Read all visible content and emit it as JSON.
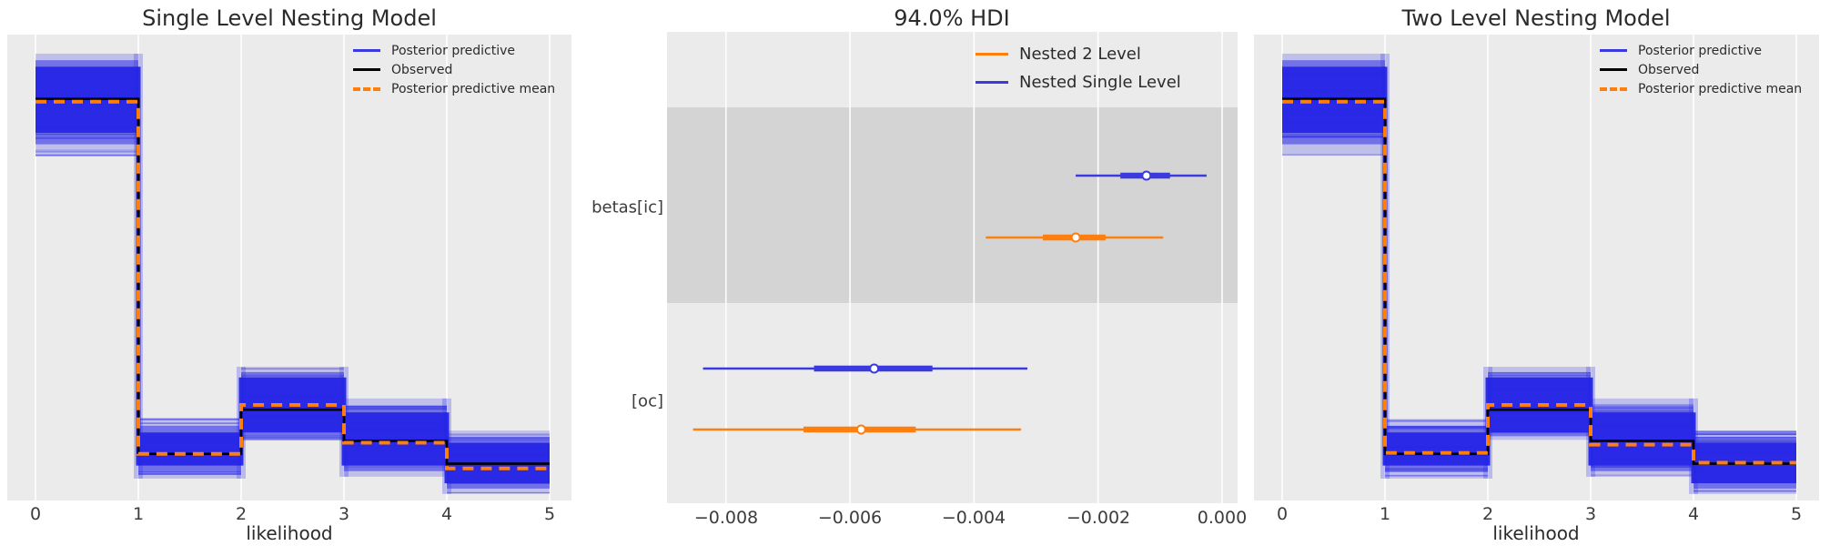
{
  "figure": {
    "background": "#ffffff",
    "panel_background": "#ebebeb",
    "shaded_band_background": "#d4d4d4",
    "grid_color": "#ffffff",
    "accent_blue": "#3a3ade",
    "band_blue": "#2626e6",
    "accent_orange": "#ff7f0e",
    "observed_black": "#000000"
  },
  "panels": {
    "left": {
      "title": "Single Level Nesting Model",
      "xlabel": "likelihood",
      "xticks": [
        "0",
        "1",
        "2",
        "3",
        "4",
        "5"
      ],
      "legend": [
        {
          "label": "Posterior predictive",
          "color": "#3a3ade",
          "dashed": false
        },
        {
          "label": "Observed",
          "color": "#000000",
          "dashed": false
        },
        {
          "label": "Posterior predictive mean",
          "color": "#ff7f0e",
          "dashed": true
        }
      ]
    },
    "middle": {
      "title": "94.0% HDI",
      "xticks": [
        "−0.008",
        "−0.006",
        "−0.004",
        "−0.002",
        "0.000"
      ],
      "row_labels": [
        "betas[ic]",
        "[oc]"
      ],
      "legend": [
        {
          "label": "Nested 2 Level",
          "color": "#ff7f0e",
          "dashed": false
        },
        {
          "label": "Nested Single Level",
          "color": "#3a3ade",
          "dashed": false
        }
      ]
    },
    "right": {
      "title": "Two Level Nesting Model",
      "xlabel": "likelihood",
      "xticks": [
        "0",
        "1",
        "2",
        "3",
        "4",
        "5"
      ],
      "legend": [
        {
          "label": "Posterior predictive",
          "color": "#3a3ade",
          "dashed": false
        },
        {
          "label": "Observed",
          "color": "#000000",
          "dashed": false
        },
        {
          "label": "Posterior predictive mean",
          "color": "#ff7f0e",
          "dashed": true
        }
      ]
    }
  },
  "chart_data": [
    {
      "type": "area",
      "subtype": "posterior-predictive-step",
      "panel": "left",
      "title": "Single Level Nesting Model",
      "xlabel": "likelihood",
      "x_bin_edges": [
        0,
        1,
        2,
        3,
        4,
        5
      ],
      "xlim": [
        -0.27,
        5.21
      ],
      "y_units": "relative density (y axis unlabeled)",
      "observed_step": [
        0.862,
        0.1,
        0.195,
        0.128,
        0.079
      ],
      "posterior_predictive_mean_step": [
        0.856,
        0.1,
        0.205,
        0.124,
        0.069
      ],
      "posterior_predictive_band_dense": [
        [
          0.789,
          0.931
        ],
        [
          0.075,
          0.146
        ],
        [
          0.146,
          0.264
        ],
        [
          0.075,
          0.189
        ],
        [
          0.037,
          0.124
        ]
      ],
      "posterior_predictive_band_faint": [
        [
          0.74,
          0.959
        ],
        [
          0.047,
          0.175
        ],
        [
          0.13,
          0.287
        ],
        [
          0.051,
          0.219
        ],
        [
          0.014,
          0.15
        ]
      ],
      "legend_entries": [
        "Posterior predictive",
        "Observed",
        "Posterior predictive mean"
      ],
      "grid": "vertical-only"
    },
    {
      "type": "scatter",
      "subtype": "forest-hdi",
      "panel": "middle",
      "title": "94.0% HDI",
      "xticks": [
        -0.008,
        -0.006,
        -0.004,
        -0.002,
        0.0
      ],
      "xlim": [
        -0.00895,
        0.00025
      ],
      "legend_entries": [
        "Nested 2 Level",
        "Nested Single Level"
      ],
      "rows": [
        {
          "param": "betas[ic]",
          "shaded": true,
          "series": [
            {
              "name": "Nested Single Level",
              "color": "#3a3ade",
              "hdi94": [
                -0.00236,
                -0.00025
              ],
              "thick_interval": [
                -0.00164,
                -0.00084
              ],
              "median": -0.00122
            },
            {
              "name": "Nested 2 Level",
              "color": "#ff7f0e",
              "hdi94": [
                -0.00381,
                -0.00095
              ],
              "thick_interval": [
                -0.00289,
                -0.00188
              ],
              "median": -0.00236
            }
          ]
        },
        {
          "param": "[oc]",
          "shaded": false,
          "series": [
            {
              "name": "Nested Single Level",
              "color": "#3a3ade",
              "hdi94": [
                -0.00837,
                -0.00314
              ],
              "thick_interval": [
                -0.00658,
                -0.00467
              ],
              "median": -0.00561
            },
            {
              "name": "Nested 2 Level",
              "color": "#ff7f0e",
              "hdi94": [
                -0.00853,
                -0.00324
              ],
              "thick_interval": [
                -0.00675,
                -0.00494
              ],
              "median": -0.00582
            }
          ]
        }
      ],
      "grid": "vertical-only"
    },
    {
      "type": "area",
      "subtype": "posterior-predictive-step",
      "panel": "right",
      "title": "Two Level Nesting Model",
      "xlabel": "likelihood",
      "x_bin_edges": [
        0,
        1,
        2,
        3,
        4,
        5
      ],
      "xlim": [
        -0.27,
        5.21
      ],
      "y_units": "relative density (y axis unlabeled)",
      "observed_step": [
        0.862,
        0.1,
        0.195,
        0.128,
        0.079
      ],
      "posterior_predictive_mean_step": [
        0.856,
        0.102,
        0.205,
        0.12,
        0.081
      ],
      "posterior_predictive_band_dense": [
        [
          0.789,
          0.931
        ],
        [
          0.075,
          0.146
        ],
        [
          0.146,
          0.264
        ],
        [
          0.075,
          0.189
        ],
        [
          0.037,
          0.124
        ]
      ],
      "posterior_predictive_band_faint": [
        [
          0.74,
          0.959
        ],
        [
          0.047,
          0.175
        ],
        [
          0.13,
          0.287
        ],
        [
          0.051,
          0.219
        ],
        [
          0.014,
          0.15
        ]
      ],
      "legend_entries": [
        "Posterior predictive",
        "Observed",
        "Posterior predictive mean"
      ],
      "grid": "vertical-only"
    }
  ]
}
